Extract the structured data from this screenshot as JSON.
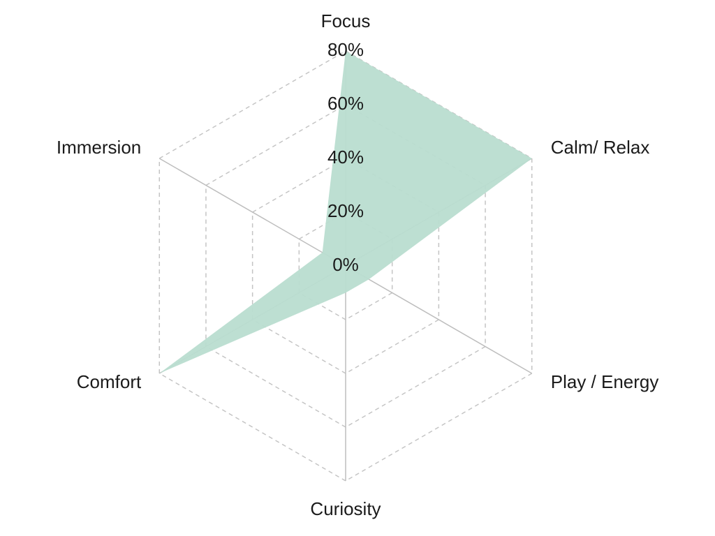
{
  "chart_data": {
    "type": "radar",
    "categories": [
      "Focus",
      "Calm/ Relax",
      "Play / Energy",
      "Curiosity",
      "Comfort",
      "Immersion"
    ],
    "values": [
      80,
      80,
      10,
      10,
      80,
      10
    ],
    "color": "#b9ddd0",
    "ylim": [
      0,
      80
    ],
    "yticks": [
      {
        "value": 0,
        "label": "0%"
      },
      {
        "value": 20,
        "label": "20%"
      },
      {
        "value": 40,
        "label": "40%"
      },
      {
        "value": 60,
        "label": "60%"
      },
      {
        "value": 80,
        "label": "80%"
      }
    ],
    "grid": true
  }
}
